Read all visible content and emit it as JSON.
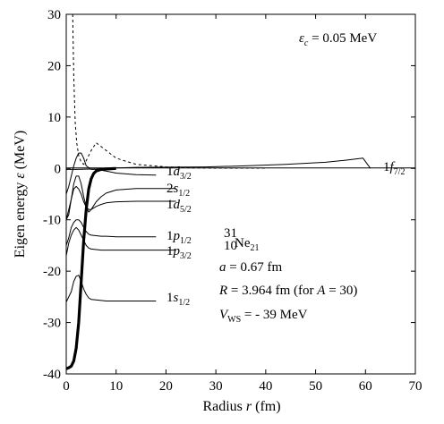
{
  "chart_data": {
    "type": "line",
    "xlabel_main": "Radius ",
    "xlabel_var": "r",
    "xlabel_unit": " (fm)",
    "ylabel_main": "Eigen energy ",
    "ylabel_var": "ε",
    "ylabel_unit": " (MeV)",
    "xlim": [
      0,
      70
    ],
    "ylim": [
      -40,
      30
    ],
    "xticks": [
      0,
      10,
      20,
      30,
      40,
      50,
      60,
      70
    ],
    "yticks": [
      -40,
      -30,
      -20,
      -10,
      0,
      10,
      20,
      30
    ],
    "grid": false,
    "series": [
      {
        "name": "1f_{7/2}",
        "style": "solid-thin",
        "x": [
          0,
          2,
          4,
          6,
          8,
          10,
          14,
          20,
          28,
          36,
          44,
          52,
          56,
          59.5,
          61
        ],
        "y": [
          -0.2,
          -0.2,
          -0.15,
          -0.1,
          0,
          0.1,
          0.2,
          0.25,
          0.3,
          0.5,
          0.8,
          1.2,
          1.6,
          2.0,
          0.0
        ]
      },
      {
        "name": "1d_{3/2}",
        "style": "solid-thin",
        "x": [
          0,
          0.5,
          1,
          1.5,
          2,
          2.5,
          3,
          3.5,
          4,
          5,
          6,
          8,
          10,
          14,
          18
        ],
        "y": [
          -5,
          -3.5,
          -1.5,
          0.5,
          2,
          3,
          3,
          2,
          0.5,
          -0.2,
          -0.2,
          -0.5,
          -0.9,
          -1.2,
          -1.3
        ]
      },
      {
        "name": "2s_{1/2}",
        "style": "solid-thin",
        "x": [
          0,
          0.5,
          1,
          1.5,
          2,
          2.5,
          3,
          3.5,
          4,
          4.5,
          5,
          6,
          7,
          8,
          10,
          14,
          18,
          22
        ],
        "y": [
          -10,
          -9,
          -6,
          -3,
          -1.5,
          -1.5,
          -3,
          -5.5,
          -7.5,
          -8.5,
          -8,
          -6.5,
          -5.5,
          -4.8,
          -4.2,
          -3.9,
          -3.9,
          -3.9
        ]
      },
      {
        "name": "1d_{5/2}",
        "style": "solid-thin",
        "x": [
          0,
          0.5,
          1,
          1.5,
          2,
          2.5,
          3,
          3.5,
          4,
          4.5,
          5,
          6,
          7,
          8,
          10,
          14,
          18,
          22
        ],
        "y": [
          -10,
          -8,
          -6,
          -4,
          -3.5,
          -4,
          -5,
          -6.5,
          -7.5,
          -8,
          -8,
          -7.4,
          -7,
          -6.7,
          -6.5,
          -6.4,
          -6.4,
          -6.4
        ]
      },
      {
        "name": "1p_{1/2}",
        "style": "solid-thin",
        "x": [
          0,
          0.5,
          1,
          1.5,
          2,
          2.5,
          3,
          3.5,
          4,
          4.5,
          5,
          6,
          7,
          8,
          10,
          14,
          18
        ],
        "y": [
          -15,
          -13.5,
          -11.5,
          -10.5,
          -10,
          -10,
          -10.5,
          -11.5,
          -12.3,
          -12.8,
          -13,
          -13.1,
          -13.2,
          -13.2,
          -13.3,
          -13.3,
          -13.3
        ]
      },
      {
        "name": "1p_{3/2}",
        "style": "solid-thin",
        "x": [
          0,
          0.5,
          1,
          1.5,
          2,
          2.5,
          3,
          3.5,
          4,
          4.5,
          5,
          6,
          7,
          8,
          10,
          14,
          18,
          22
        ],
        "y": [
          -17,
          -14.5,
          -13,
          -12,
          -11.5,
          -12,
          -13,
          -14,
          -15,
          -15.5,
          -15.7,
          -15.8,
          -15.9,
          -15.9,
          -15.9,
          -15.9,
          -15.9,
          -15.9
        ]
      },
      {
        "name": "1s_{1/2}",
        "style": "solid-thin",
        "x": [
          0,
          0.5,
          1,
          1.5,
          2,
          2.5,
          3,
          3.5,
          4,
          4.5,
          5,
          6,
          7,
          8,
          10,
          14,
          18
        ],
        "y": [
          -26,
          -25,
          -24,
          -22,
          -21,
          -20.8,
          -22,
          -23.5,
          -24.5,
          -25.2,
          -25.5,
          -25.6,
          -25.7,
          -25.8,
          -25.8,
          -25.8,
          -25.8
        ]
      },
      {
        "name": "",
        "style": "bold",
        "x": [
          0,
          0.5,
          1,
          1.5,
          2,
          2.5,
          3,
          3.5,
          4,
          4.5,
          5,
          5.5,
          6,
          7,
          8,
          9,
          10
        ],
        "y": [
          -39,
          -38.8,
          -38.5,
          -37.5,
          -35,
          -30,
          -22,
          -14,
          -8,
          -4,
          -2,
          -1,
          -0.5,
          -0.2,
          -0.1,
          -0.05,
          0
        ]
      },
      {
        "name": "",
        "style": "dashed",
        "x": [
          1.3,
          1.5,
          1.8,
          2.1,
          2.5,
          3,
          3.5,
          4,
          5,
          6,
          8,
          10,
          14,
          20,
          25,
          30,
          35,
          40
        ],
        "y": [
          30,
          18,
          9,
          5,
          2.5,
          1.2,
          0.8,
          1.5,
          3.5,
          5,
          3.5,
          2,
          0.8,
          0.3,
          0.1,
          0.05,
          0.05,
          0.05
        ]
      }
    ],
    "annotations": {
      "ec_var": "ε",
      "ec_sub": "c",
      "ec_val": " = 0.05 MeV",
      "level_1f_main": "1",
      "level_1f_var": "f",
      "level_1f_sub": "7/2",
      "level_1d32_main": "1",
      "level_1d32_var": "d",
      "level_1d32_sub": "3/2",
      "level_2s_main": "2",
      "level_2s_var": "s",
      "level_2s_sub": "1/2",
      "level_1d52_main": "1",
      "level_1d52_var": "d",
      "level_1d52_sub": "5/2",
      "level_1p12_main": "1",
      "level_1p12_var": "p",
      "level_1p12_sub": "1/2",
      "level_1p32_main": "1",
      "level_1p32_var": "p",
      "level_1p32_sub": "3/2",
      "level_1s_main": "1",
      "level_1s_var": "s",
      "level_1s_sub": "1/2",
      "nucleus_mass": "31",
      "nucleus_z": "10",
      "nucleus_sym": "Ne",
      "nucleus_n": "21",
      "param_a_var": "a",
      "param_a_val": " = 0.67 fm",
      "param_R_var": "R",
      "param_R_val": " = 3.964 fm (for ",
      "param_R_A": "A",
      "param_R_tail": " = 30)",
      "param_V_var": "V",
      "param_V_sub": "WS",
      "param_V_val": " = - 39 MeV"
    }
  }
}
